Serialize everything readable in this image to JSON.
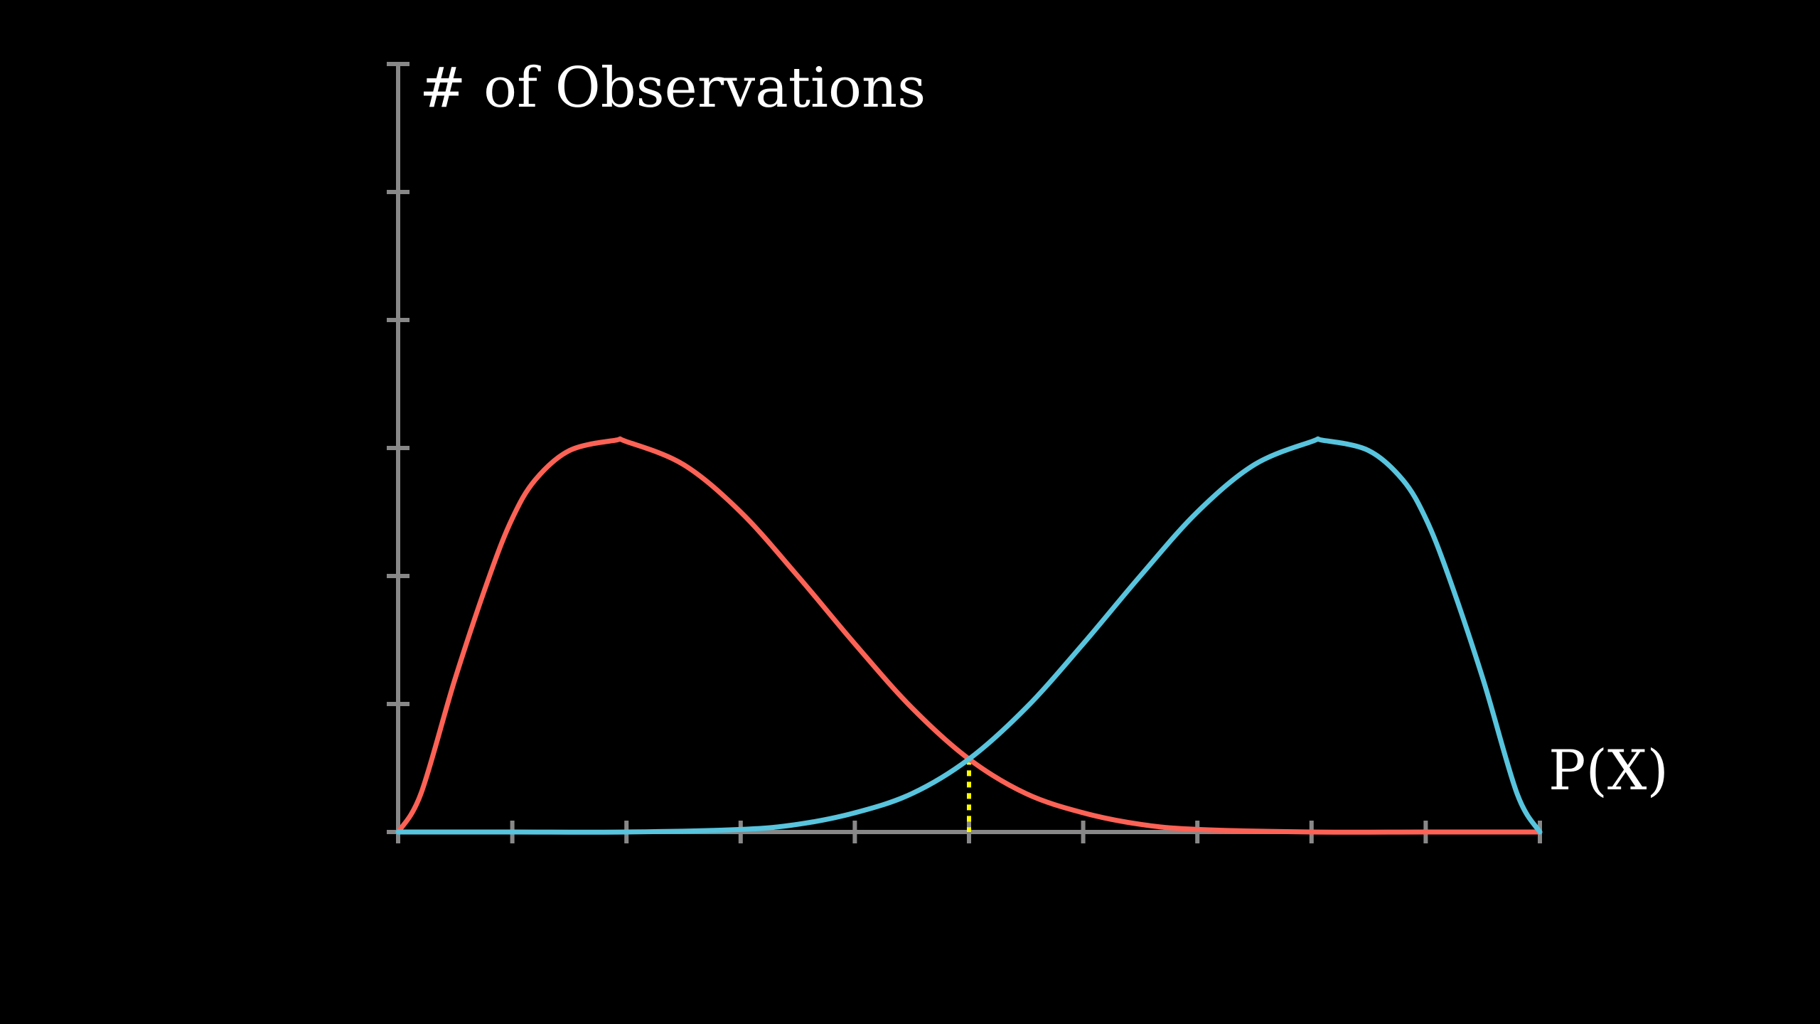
{
  "chart_data": {
    "type": "line",
    "ylabel": "# of Observations",
    "xlabel": "P(X)",
    "xlim": [
      0,
      1
    ],
    "ylim": [
      0,
      6
    ],
    "x_ticks": [
      0,
      0.1,
      0.2,
      0.3,
      0.4,
      0.5,
      0.6,
      0.7,
      0.8,
      0.9,
      1.0
    ],
    "y_ticks": [
      0,
      1,
      2,
      3,
      4,
      5,
      6
    ],
    "grid": false,
    "series": [
      {
        "color": "#FC6255",
        "x": [
          0,
          0.02,
          0.05,
          0.08,
          0.1,
          0.12,
          0.15,
          0.19,
          0.2,
          0.25,
          0.3,
          0.35,
          0.4,
          0.45,
          0.5,
          0.55,
          0.6,
          0.65,
          0.7,
          0.8,
          0.9,
          1.0
        ],
        "values": [
          0,
          0.3,
          1.2,
          2.0,
          2.45,
          2.75,
          2.98,
          3.06,
          3.05,
          2.87,
          2.5,
          2.0,
          1.47,
          0.97,
          0.57,
          0.3,
          0.15,
          0.06,
          0.02,
          0.0,
          0.0,
          0.0
        ]
      },
      {
        "color": "#58C4DD",
        "x": [
          0,
          0.1,
          0.2,
          0.3,
          0.35,
          0.4,
          0.45,
          0.5,
          0.55,
          0.6,
          0.65,
          0.7,
          0.75,
          0.8,
          0.81,
          0.85,
          0.88,
          0.9,
          0.92,
          0.95,
          0.98,
          1.0
        ],
        "values": [
          0.0,
          0.0,
          0.0,
          0.02,
          0.06,
          0.15,
          0.3,
          0.57,
          0.97,
          1.47,
          2.0,
          2.5,
          2.87,
          3.05,
          3.06,
          2.98,
          2.75,
          2.45,
          2.0,
          1.2,
          0.3,
          0.0
        ]
      }
    ],
    "annotations": [
      {
        "type": "dotted-vertical-line",
        "color": "#FFFF00",
        "x": 0.5,
        "y": 0.57
      }
    ],
    "axis_color": "#888888"
  }
}
